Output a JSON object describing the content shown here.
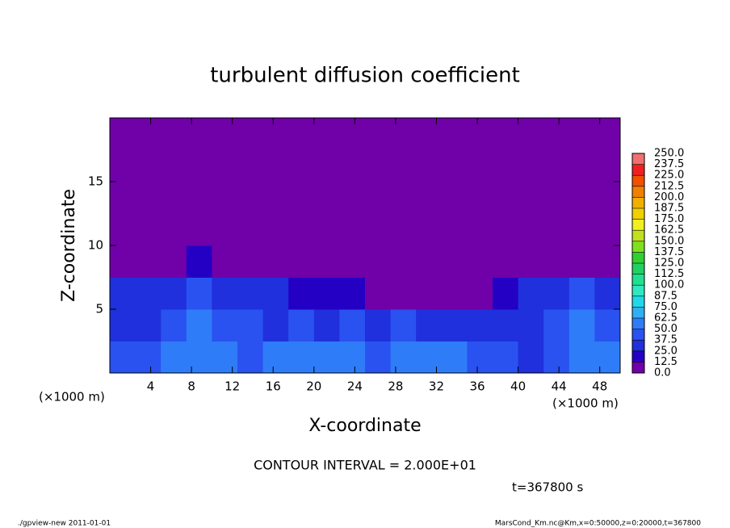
{
  "chart_data": {
    "type": "heatmap",
    "title": "turbulent diffusion coefficient",
    "x_label": "X-coordinate",
    "y_label": "Z-coordinate",
    "x_units": [
      "(×1000 m)",
      "(×1000 m)"
    ],
    "xlim": [
      0,
      50
    ],
    "ylim": [
      0,
      20
    ],
    "xticks": [
      4,
      8,
      12,
      16,
      20,
      24,
      28,
      32,
      36,
      40,
      44,
      48
    ],
    "yticks": [
      5,
      10,
      15
    ],
    "x_bins": [
      0,
      2.5,
      5,
      7.5,
      10,
      12.5,
      15,
      17.5,
      20,
      22.5,
      25,
      27.5,
      30,
      32.5,
      35,
      37.5,
      40,
      42.5,
      45,
      47.5,
      50
    ],
    "y_bins": [
      0,
      2.5,
      5,
      7.5,
      10,
      12.5,
      15,
      17.5,
      20
    ],
    "z": [
      [
        45,
        40,
        55,
        60,
        50,
        45,
        50,
        55,
        60,
        50,
        45,
        50,
        55,
        50,
        45,
        40,
        35,
        45,
        60,
        50
      ],
      [
        35,
        30,
        40,
        55,
        45,
        40,
        35,
        40,
        35,
        40,
        35,
        40,
        30,
        35,
        25,
        30,
        35,
        40,
        55,
        45
      ],
      [
        35,
        25,
        30,
        40,
        35,
        30,
        25,
        20,
        15,
        15,
        10,
        10,
        5,
        5,
        5,
        20,
        30,
        35,
        40,
        35
      ],
      [
        5,
        0,
        5,
        15,
        10,
        5,
        5,
        0,
        0,
        0,
        0,
        0,
        0,
        0,
        0,
        0,
        0,
        5,
        5,
        0
      ],
      [
        0,
        0,
        0,
        0,
        0,
        0,
        0,
        0,
        0,
        0,
        0,
        0,
        0,
        0,
        0,
        0,
        0,
        0,
        0,
        0
      ],
      [
        0,
        0,
        0,
        0,
        0,
        0,
        0,
        0,
        0,
        0,
        0,
        0,
        0,
        0,
        0,
        0,
        0,
        0,
        0,
        0
      ],
      [
        0,
        0,
        0,
        0,
        0,
        0,
        0,
        0,
        0,
        0,
        0,
        0,
        0,
        0,
        0,
        0,
        0,
        0,
        0,
        0
      ],
      [
        0,
        0,
        0,
        0,
        0,
        0,
        0,
        0,
        0,
        0,
        0,
        0,
        0,
        0,
        0,
        0,
        0,
        0,
        0,
        0
      ]
    ],
    "colorbar": {
      "levels": [
        {
          "value": 0,
          "label": "0.0"
        },
        12.5,
        {
          "value": 25,
          "label": "25.0"
        },
        37.5,
        {
          "value": 50,
          "label": "50.0"
        },
        62.5,
        {
          "value": 75,
          "label": "75.0"
        },
        87.5,
        {
          "value": 100,
          "label": "100.0"
        },
        112.5,
        {
          "value": 125,
          "label": "125.0"
        },
        137.5,
        {
          "value": 150,
          "label": "150.0"
        },
        162.5,
        {
          "value": 175,
          "label": "175.0"
        },
        187.5,
        {
          "value": 200,
          "label": "200.0"
        },
        212.5,
        {
          "value": 225,
          "label": "225.0"
        },
        237.5,
        {
          "value": 250,
          "label": "250.0"
        }
      ],
      "colors": [
        "#7000a8",
        "#2400c4",
        "#1f30dc",
        "#2a52f0",
        "#2f7cf8",
        "#2fb0f0",
        "#20d8e8",
        "#30e8c0",
        "#20e090",
        "#20d060",
        "#30d030",
        "#80e020",
        "#c0e020",
        "#f0f020",
        "#f0d000",
        "#f0b000",
        "#f08000",
        "#f05000",
        "#f02020",
        "#f07070"
      ]
    },
    "contour_interval": "CONTOUR INTERVAL = 2.000E+01",
    "time": "t=367800 s"
  },
  "footer": {
    "left": "./gpview-new   2011-01-01",
    "right": "MarsCond_Km.nc@Km,x=0:50000,z=0:20000,t=367800"
  }
}
